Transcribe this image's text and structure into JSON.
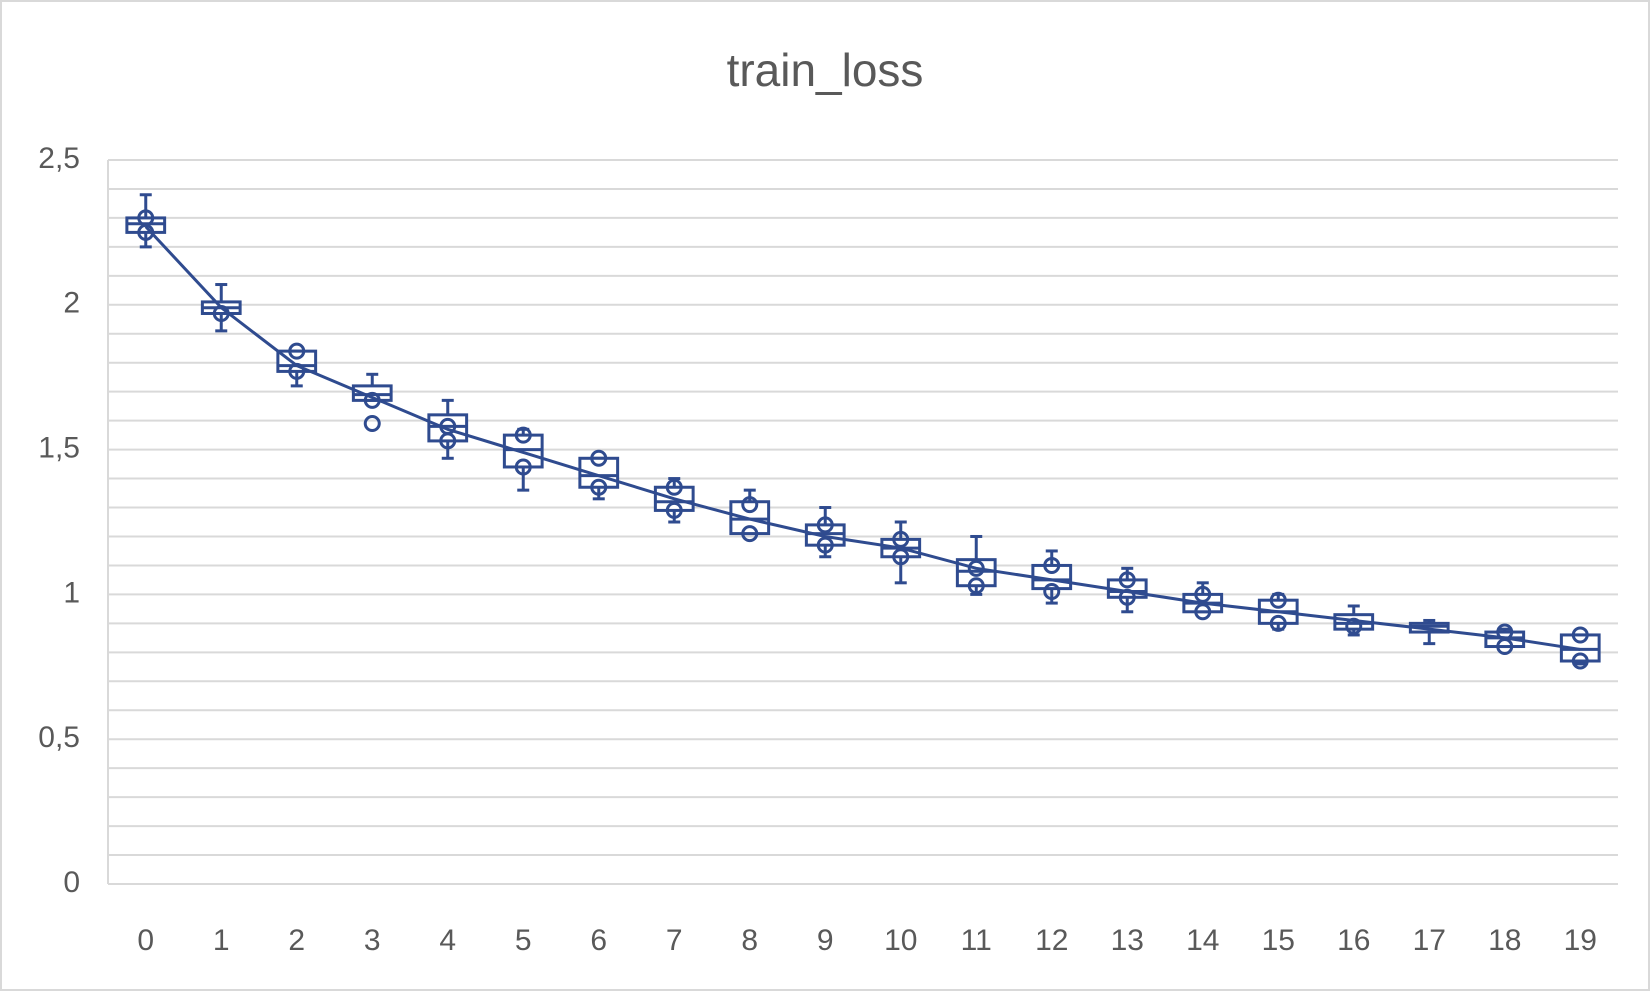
{
  "chart_data": {
    "type": "box",
    "title": "train_loss",
    "color": "#2f4b8f",
    "categories": [
      "0",
      "1",
      "2",
      "3",
      "4",
      "5",
      "6",
      "7",
      "8",
      "9",
      "10",
      "11",
      "12",
      "13",
      "14",
      "15",
      "16",
      "17",
      "18",
      "19"
    ],
    "boxes": [
      {
        "min": 2.2,
        "q1": 2.25,
        "median": 2.28,
        "q3": 2.3,
        "max": 2.38,
        "mean": 2.27,
        "points": [
          2.3,
          2.25
        ]
      },
      {
        "min": 1.91,
        "q1": 1.97,
        "median": 1.99,
        "q3": 2.01,
        "max": 2.07,
        "mean": 1.99,
        "points": [
          1.97
        ]
      },
      {
        "min": 1.72,
        "q1": 1.77,
        "median": 1.79,
        "q3": 1.84,
        "max": 1.84,
        "mean": 1.79,
        "points": [
          1.84,
          1.77
        ]
      },
      {
        "min": 1.67,
        "q1": 1.67,
        "median": 1.69,
        "q3": 1.72,
        "max": 1.76,
        "mean": 1.68,
        "points": [
          1.67,
          1.59
        ]
      },
      {
        "min": 1.47,
        "q1": 1.53,
        "median": 1.58,
        "q3": 1.62,
        "max": 1.67,
        "mean": 1.57,
        "points": [
          1.58,
          1.53
        ]
      },
      {
        "min": 1.36,
        "q1": 1.44,
        "median": 1.5,
        "q3": 1.55,
        "max": 1.57,
        "mean": 1.49,
        "points": [
          1.55,
          1.44
        ]
      },
      {
        "min": 1.33,
        "q1": 1.37,
        "median": 1.41,
        "q3": 1.47,
        "max": 1.47,
        "mean": 1.41,
        "points": [
          1.47,
          1.37
        ]
      },
      {
        "min": 1.25,
        "q1": 1.29,
        "median": 1.32,
        "q3": 1.37,
        "max": 1.4,
        "mean": 1.33,
        "points": [
          1.37,
          1.29
        ]
      },
      {
        "min": 1.21,
        "q1": 1.21,
        "median": 1.26,
        "q3": 1.32,
        "max": 1.36,
        "mean": 1.26,
        "points": [
          1.31,
          1.21
        ]
      },
      {
        "min": 1.13,
        "q1": 1.17,
        "median": 1.21,
        "q3": 1.24,
        "max": 1.3,
        "mean": 1.2,
        "points": [
          1.24,
          1.17
        ]
      },
      {
        "min": 1.04,
        "q1": 1.13,
        "median": 1.16,
        "q3": 1.19,
        "max": 1.25,
        "mean": 1.16,
        "points": [
          1.19,
          1.13
        ]
      },
      {
        "min": 1.0,
        "q1": 1.03,
        "median": 1.08,
        "q3": 1.12,
        "max": 1.2,
        "mean": 1.09,
        "points": [
          1.09,
          1.03
        ]
      },
      {
        "min": 0.97,
        "q1": 1.02,
        "median": 1.05,
        "q3": 1.1,
        "max": 1.15,
        "mean": 1.05,
        "points": [
          1.1,
          1.01
        ]
      },
      {
        "min": 0.94,
        "q1": 0.99,
        "median": 1.01,
        "q3": 1.05,
        "max": 1.09,
        "mean": 1.01,
        "points": [
          1.05,
          0.99
        ]
      },
      {
        "min": 0.94,
        "q1": 0.94,
        "median": 0.97,
        "q3": 1.0,
        "max": 1.04,
        "mean": 0.97,
        "points": [
          1.0,
          0.94
        ]
      },
      {
        "min": 0.88,
        "q1": 0.9,
        "median": 0.94,
        "q3": 0.98,
        "max": 1.0,
        "mean": 0.94,
        "points": [
          0.98,
          0.9
        ]
      },
      {
        "min": 0.86,
        "q1": 0.88,
        "median": 0.9,
        "q3": 0.93,
        "max": 0.96,
        "mean": 0.91,
        "points": [
          0.89
        ]
      },
      {
        "min": 0.83,
        "q1": 0.87,
        "median": 0.89,
        "q3": 0.9,
        "max": 0.91,
        "mean": 0.88,
        "points": []
      },
      {
        "min": 0.82,
        "q1": 0.82,
        "median": 0.85,
        "q3": 0.87,
        "max": 0.88,
        "mean": 0.85,
        "points": [
          0.87,
          0.82
        ]
      },
      {
        "min": 0.76,
        "q1": 0.77,
        "median": 0.81,
        "q3": 0.86,
        "max": 0.86,
        "mean": 0.81,
        "points": [
          0.86,
          0.77
        ]
      }
    ],
    "ylim": [
      0,
      2.5
    ],
    "yticks": [
      0,
      {
        "value": 0.5,
        "label": "0,5"
      },
      1,
      {
        "value": 1.5,
        "label": "1,5"
      },
      2,
      {
        "value": 2.5,
        "label": "2,5"
      }
    ],
    "minor_yticks": [
      0.1,
      0.2,
      0.3,
      0.4,
      0.6,
      0.7,
      0.8,
      0.9,
      1.1,
      1.2,
      1.3,
      1.4,
      1.6,
      1.7,
      1.8,
      1.9,
      2.1,
      2.2,
      2.3,
      2.4
    ],
    "grid": true
  }
}
